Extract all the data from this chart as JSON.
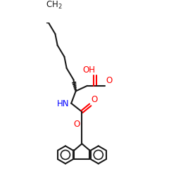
{
  "bg_color": "#ffffff",
  "bond_color": "#1a1a1a",
  "O_color": "#ff0000",
  "N_color": "#0000ff",
  "lw": 1.5,
  "fs": 8.5,
  "fig_w": 2.5,
  "fig_h": 2.5,
  "dpi": 100,
  "xlim": [
    0,
    10
  ],
  "ylim": [
    0,
    10
  ]
}
